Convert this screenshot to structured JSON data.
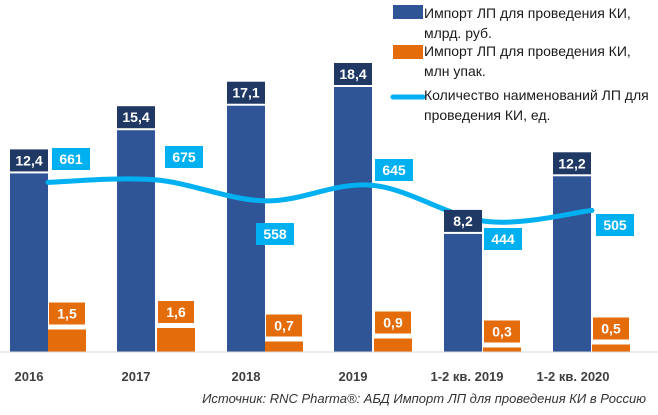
{
  "chart_data": {
    "type": "bar",
    "categories": [
      "2016",
      "2017",
      "2018",
      "2019",
      "1-2 кв. 2019",
      "1-2 кв. 2020"
    ],
    "series": [
      {
        "name": "Импорт ЛП для проведения КИ, млрд. руб.",
        "kind": "bar",
        "color": "#2F5597",
        "values": [
          12.4,
          15.4,
          17.1,
          18.4,
          8.2,
          12.2
        ],
        "labels": [
          "12,4",
          "15,4",
          "17,1",
          "18,4",
          "8,2",
          "12,2"
        ]
      },
      {
        "name": "Импорт ЛП для проведения КИ, млн упак.",
        "kind": "bar",
        "color": "#E46C0A",
        "values": [
          1.5,
          1.6,
          0.7,
          0.9,
          0.3,
          0.5
        ],
        "labels": [
          "1,5",
          "1,6",
          "0,7",
          "0,9",
          "0,3",
          "0,5"
        ]
      },
      {
        "name": "Количество наименований ЛП для проведения КИ, ед.",
        "kind": "line",
        "color": "#00B0F0",
        "values": [
          661,
          675,
          558,
          645,
          444,
          505
        ],
        "labels": [
          "661",
          "675",
          "558",
          "645",
          "444",
          "505"
        ]
      }
    ],
    "legend_lines": [
      [
        "Импорт ЛП для проведения КИ,",
        "млрд. руб."
      ],
      [
        "Импорт ЛП для проведения КИ,",
        "млн упак."
      ],
      [
        "Количество наименований ЛП для",
        "проведения КИ, ед."
      ]
    ],
    "legend_position": "top-right",
    "grid": false
  },
  "source": "Источник: RNC Pharma®: АБД Импорт ЛП для проведения КИ в Россию"
}
